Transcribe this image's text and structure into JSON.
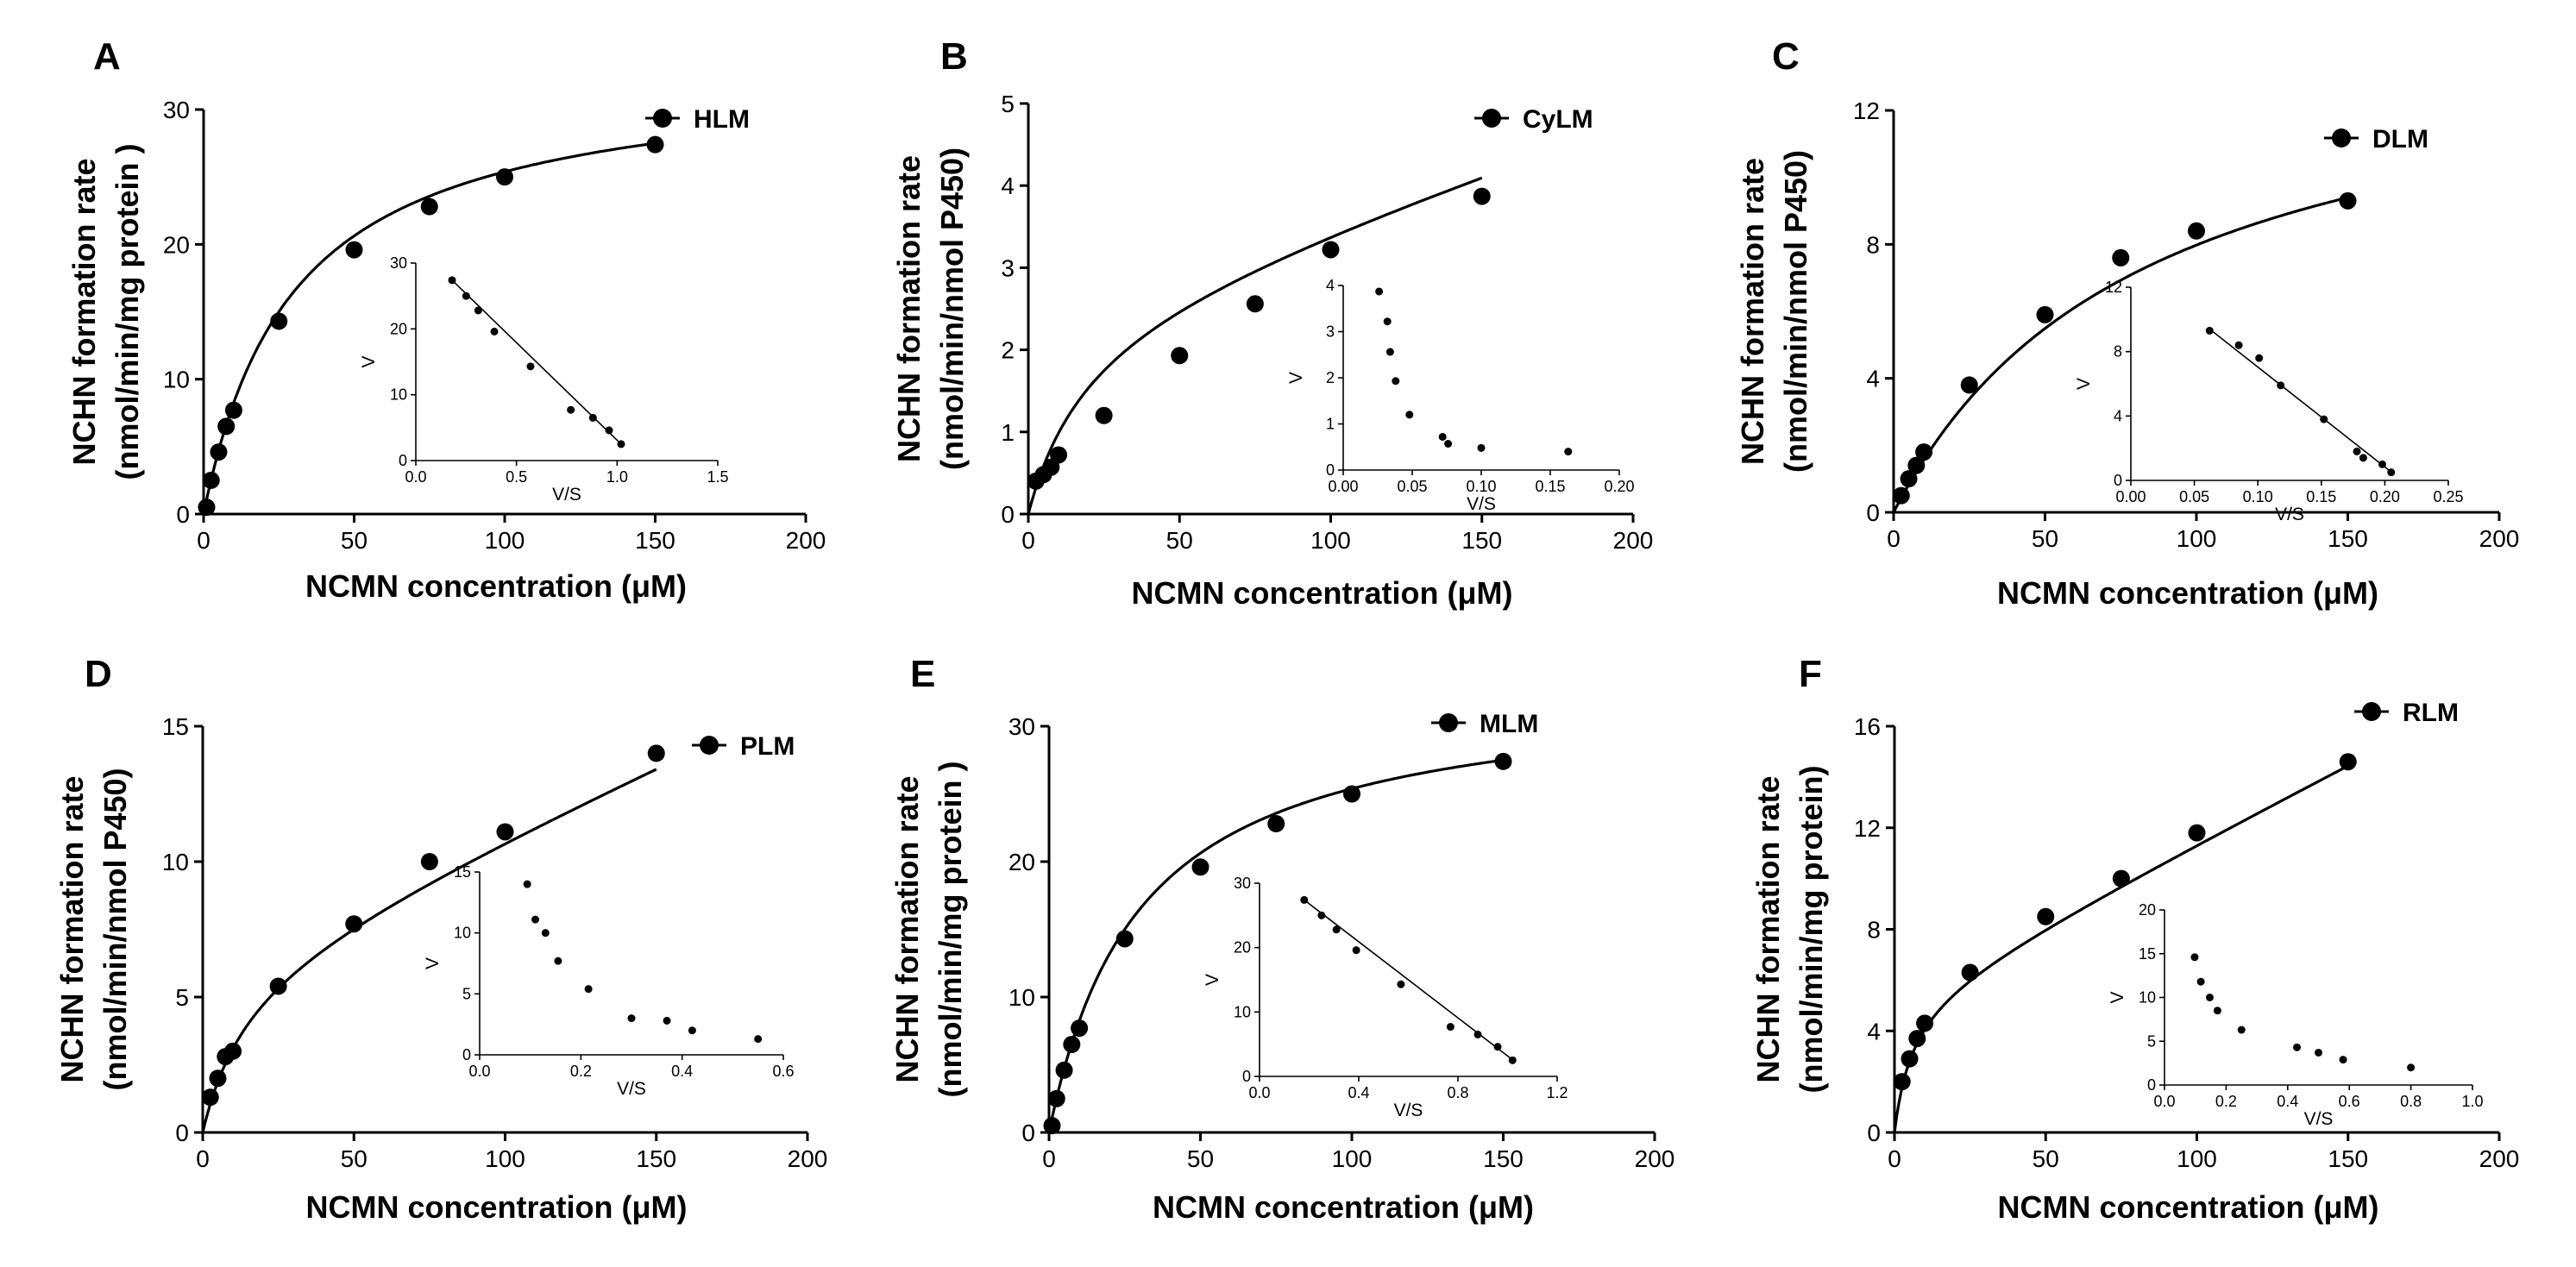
{
  "chart_data": [
    {
      "type": "scatter",
      "panel": "A",
      "legend": "HLM",
      "xlabel": "NCMN concentration (μM)",
      "ylabel_line1": "NCHN formation rate",
      "ylabel_line2": "(nmol/min/mg protein )",
      "xlim": [
        0,
        200
      ],
      "xticks": [
        0,
        50,
        100,
        150,
        200
      ],
      "ylim": [
        0,
        30
      ],
      "yticks": [
        0,
        10,
        20,
        30
      ],
      "x": [
        1,
        2.5,
        5,
        7.5,
        10,
        25,
        50,
        75,
        100,
        150
      ],
      "y": [
        0.5,
        2.5,
        4.6,
        6.5,
        7.7,
        14.3,
        19.6,
        22.8,
        25.0,
        27.4
      ],
      "fit": {
        "model": "michaelis-menten",
        "vmax": 33,
        "km": 30
      },
      "inset": {
        "xlabel": "V/S",
        "ylabel": "V",
        "xlim": [
          0,
          1.5
        ],
        "xticks": [
          0.0,
          0.5,
          1.0,
          1.5
        ],
        "ylim": [
          0,
          30
        ],
        "yticks": [
          0,
          10,
          20,
          30
        ],
        "x": [
          0.18,
          0.25,
          0.31,
          0.39,
          0.57,
          0.77,
          0.88,
          0.96,
          1.02
        ],
        "y": [
          27.4,
          25.0,
          22.8,
          19.6,
          14.3,
          7.7,
          6.5,
          4.6,
          2.5
        ],
        "line": [
          [
            0.18,
            27.4
          ],
          [
            1.02,
            2.5
          ]
        ]
      }
    },
    {
      "type": "scatter",
      "panel": "B",
      "legend": "CyLM",
      "xlabel": "NCMN concentration (μM)",
      "ylabel_line1": "NCHN formation rate",
      "ylabel_line2": "(nmol/min/nmol P450)",
      "xlim": [
        0,
        200
      ],
      "xticks": [
        0,
        50,
        100,
        150,
        200
      ],
      "ylim": [
        0,
        5
      ],
      "yticks": [
        0,
        1,
        2,
        3,
        4,
        5
      ],
      "x": [
        2.5,
        5,
        7.5,
        10,
        25,
        50,
        75,
        100,
        150
      ],
      "y": [
        0.4,
        0.48,
        0.57,
        0.72,
        1.2,
        1.93,
        2.56,
        3.22,
        3.87
      ],
      "fit": {
        "model": "michaelis-menten-linear",
        "vmax": 2.6,
        "km": 20,
        "kns": 0.012
      },
      "inset": {
        "xlabel": "V/S",
        "ylabel": "V",
        "xlim": [
          0,
          0.2
        ],
        "xticks": [
          0.0,
          0.05,
          0.1,
          0.15,
          0.2
        ],
        "ylim": [
          0,
          4
        ],
        "yticks": [
          0,
          1,
          2,
          3,
          4
        ],
        "x": [
          0.026,
          0.032,
          0.034,
          0.038,
          0.048,
          0.072,
          0.076,
          0.1,
          0.163
        ],
        "y": [
          3.87,
          3.22,
          2.56,
          1.93,
          1.2,
          0.72,
          0.57,
          0.48,
          0.4
        ]
      }
    },
    {
      "type": "scatter",
      "panel": "C",
      "legend": "DLM",
      "xlabel": "NCMN concentration (μM)",
      "ylabel_line1": "NCHN formation rate",
      "ylabel_line2": "(nmol/min/nmol P450)",
      "xlim": [
        0,
        200
      ],
      "xticks": [
        0,
        50,
        100,
        150,
        200
      ],
      "ylim": [
        0,
        12
      ],
      "yticks": [
        0,
        4,
        8,
        12
      ],
      "x": [
        2.5,
        5,
        7.5,
        10,
        25,
        50,
        75,
        100,
        150
      ],
      "y": [
        0.5,
        1.0,
        1.4,
        1.8,
        3.8,
        5.9,
        7.6,
        8.4,
        9.3
      ],
      "fit": {
        "model": "michaelis-menten",
        "vmax": 14.6,
        "km": 83
      },
      "inset": {
        "xlabel": "V/S",
        "ylabel": "V",
        "xlim": [
          0,
          0.25
        ],
        "xticks": [
          0.0,
          0.05,
          0.1,
          0.15,
          0.2,
          0.25
        ],
        "ylim": [
          0,
          12
        ],
        "yticks": [
          0,
          4,
          8,
          12
        ],
        "x": [
          0.062,
          0.085,
          0.101,
          0.118,
          0.152,
          0.178,
          0.183,
          0.198,
          0.205
        ],
        "y": [
          9.3,
          8.4,
          7.6,
          5.9,
          3.8,
          1.8,
          1.4,
          1.0,
          0.5
        ],
        "line": [
          [
            0.062,
            9.4
          ],
          [
            0.207,
            0.4
          ]
        ]
      }
    },
    {
      "type": "scatter",
      "panel": "D",
      "legend": "PLM",
      "xlabel": "NCMN concentration (μM)",
      "ylabel_line1": "NCHN formation rate",
      "ylabel_line2": "(nmol/min/nmol P450)",
      "xlim": [
        0,
        200
      ],
      "xticks": [
        0,
        50,
        100,
        150,
        200
      ],
      "ylim": [
        0,
        15
      ],
      "yticks": [
        0,
        5,
        10,
        15
      ],
      "x": [
        2.5,
        5,
        7.5,
        10,
        25,
        50,
        75,
        100,
        150
      ],
      "y": [
        1.3,
        2.0,
        2.8,
        3.0,
        5.4,
        7.7,
        10.0,
        11.1,
        14.0
      ],
      "fit": {
        "model": "michaelis-menten-linear",
        "vmax": 6.5,
        "km": 15,
        "kns": 0.05
      },
      "inset": {
        "xlabel": "V/S",
        "ylabel": "V",
        "xlim": [
          0,
          0.6
        ],
        "xticks": [
          0.0,
          0.2,
          0.4,
          0.6
        ],
        "ylim": [
          0,
          15
        ],
        "yticks": [
          0,
          5,
          10,
          15
        ],
        "x": [
          0.094,
          0.11,
          0.13,
          0.155,
          0.215,
          0.3,
          0.37,
          0.42,
          0.55
        ],
        "y": [
          14.0,
          11.1,
          10.0,
          7.7,
          5.4,
          3.0,
          2.8,
          2.0,
          1.3
        ]
      }
    },
    {
      "type": "scatter",
      "panel": "E",
      "legend": "MLM",
      "xlabel": "NCMN concentration (μM)",
      "ylabel_line1": "NCHN formation rate",
      "ylabel_line2": "(nmol/min/mg protein )",
      "xlim": [
        0,
        200
      ],
      "xticks": [
        0,
        50,
        100,
        150,
        200
      ],
      "ylim": [
        0,
        30
      ],
      "yticks": [
        0,
        10,
        20,
        30
      ],
      "x": [
        1,
        2.5,
        5,
        7.5,
        10,
        25,
        50,
        75,
        100,
        150
      ],
      "y": [
        0.5,
        2.5,
        4.6,
        6.5,
        7.7,
        14.3,
        19.6,
        22.8,
        25.0,
        27.4
      ],
      "fit": {
        "model": "michaelis-menten",
        "vmax": 33,
        "km": 30
      },
      "inset": {
        "xlabel": "V/S",
        "ylabel": "V",
        "xlim": [
          0,
          1.2
        ],
        "xticks": [
          0.0,
          0.4,
          0.8,
          1.2
        ],
        "ylim": [
          0,
          30
        ],
        "yticks": [
          0,
          10,
          20,
          30
        ],
        "x": [
          0.18,
          0.25,
          0.31,
          0.39,
          0.57,
          0.77,
          0.88,
          0.96,
          1.02
        ],
        "y": [
          27.4,
          25.0,
          22.8,
          19.6,
          14.3,
          7.7,
          6.5,
          4.6,
          2.5
        ],
        "line": [
          [
            0.18,
            27.4
          ],
          [
            1.03,
            2.3
          ]
        ]
      }
    },
    {
      "type": "scatter",
      "panel": "F",
      "legend": "RLM",
      "xlabel": "NCMN concentration (μM)",
      "ylabel_line1": "NCHN formation rate",
      "ylabel_line2": "(nmol/min/mg protein)",
      "xlim": [
        0,
        200
      ],
      "xticks": [
        0,
        50,
        100,
        150,
        200
      ],
      "ylim": [
        0,
        16
      ],
      "yticks": [
        0,
        4,
        8,
        12,
        16
      ],
      "x": [
        2.5,
        5,
        7.5,
        10,
        25,
        50,
        75,
        100,
        150
      ],
      "y": [
        2.0,
        2.9,
        3.7,
        4.3,
        6.3,
        8.5,
        10.0,
        11.8,
        14.6
      ],
      "fit": {
        "model": "michaelis-menten-linear",
        "vmax": 5.5,
        "km": 6,
        "kns": 0.061
      },
      "inset": {
        "xlabel": "V/S",
        "ylabel": "V",
        "xlim": [
          0,
          1.0
        ],
        "xticks": [
          0.0,
          0.2,
          0.4,
          0.6,
          0.8,
          1.0
        ],
        "ylim": [
          0,
          20
        ],
        "yticks": [
          0,
          5,
          10,
          15,
          20
        ],
        "x": [
          0.098,
          0.118,
          0.147,
          0.172,
          0.25,
          0.43,
          0.5,
          0.58,
          0.8
        ],
        "y": [
          14.6,
          11.8,
          10.0,
          8.5,
          6.3,
          4.3,
          3.7,
          2.9,
          2.0
        ]
      }
    }
  ]
}
